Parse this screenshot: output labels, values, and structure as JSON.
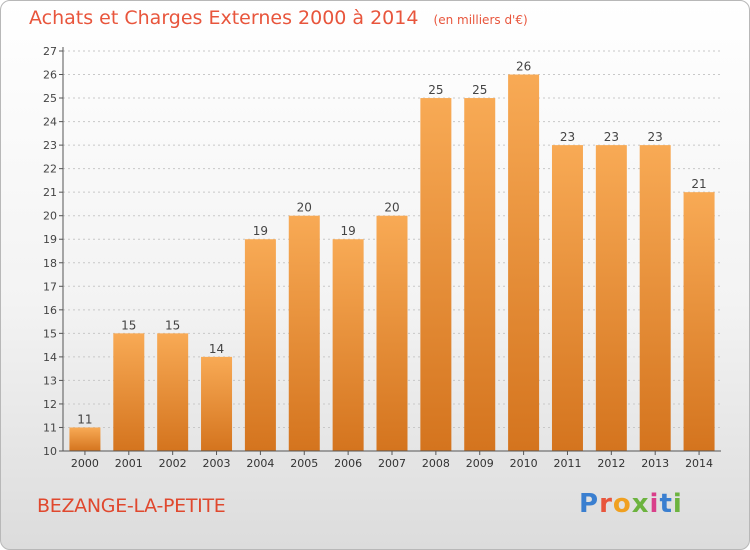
{
  "colors": {
    "title": "#e8553c",
    "bar_top": "#f8aa55",
    "bar_bottom": "#d4741e",
    "axis": "#555555",
    "grid": "#c8c8c8",
    "town": "#e0482e"
  },
  "header": {
    "title": "Achats et Charges Externes 2000 à 2014",
    "subtitle": "(en milliers d'€)"
  },
  "footer": {
    "town": "BEZANGE-LA-PETITE",
    "logo": "Proxiti"
  },
  "chart_data": {
    "type": "bar",
    "title": "Achats et Charges Externes 2000 à 2014",
    "subtitle": "(en milliers d'€)",
    "categories": [
      "2000",
      "2001",
      "2002",
      "2003",
      "2004",
      "2005",
      "2006",
      "2007",
      "2008",
      "2009",
      "2010",
      "2011",
      "2012",
      "2013",
      "2014"
    ],
    "values": [
      11,
      15,
      15,
      14,
      19,
      20,
      19,
      20,
      25,
      25,
      26,
      23,
      23,
      23,
      21
    ],
    "ylim": [
      10,
      27
    ],
    "yticks": [
      10,
      11,
      12,
      13,
      14,
      15,
      16,
      17,
      18,
      19,
      20,
      21,
      22,
      23,
      24,
      25,
      26,
      27
    ],
    "grid": true,
    "data_labels": true
  }
}
